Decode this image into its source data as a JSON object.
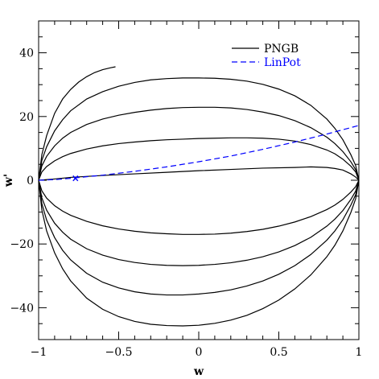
{
  "chart_data": {
    "type": "line",
    "xlabel": "w",
    "ylabel": "w'",
    "xlim": [
      -1,
      1
    ],
    "ylim": [
      -50,
      50
    ],
    "x_ticks": [
      -1,
      -0.5,
      0,
      0.5,
      1
    ],
    "x_tick_labels": [
      "-1",
      "-0.5",
      "0",
      "0.5",
      "1"
    ],
    "y_ticks": [
      -40,
      -20,
      0,
      20,
      40
    ],
    "y_tick_labels": [
      "-40",
      "-20",
      "0",
      "20",
      "40"
    ],
    "legend_position": "top-right",
    "series": [
      {
        "name": "PNGB",
        "style": "solid",
        "color": "#000000",
        "curves": [
          [
            [
              -1,
              0
            ],
            [
              -0.98,
              8
            ],
            [
              -0.95,
              14
            ],
            [
              -0.9,
              21
            ],
            [
              -0.85,
              25.5
            ],
            [
              -0.8,
              28.5
            ],
            [
              -0.75,
              30.8
            ],
            [
              -0.7,
              32.5
            ],
            [
              -0.65,
              33.8
            ],
            [
              -0.6,
              34.7
            ],
            [
              -0.55,
              35.3
            ],
            [
              -0.52,
              35.6
            ]
          ],
          [
            [
              -1,
              0
            ],
            [
              -0.98,
              6.2
            ],
            [
              -0.95,
              10.5
            ],
            [
              -0.9,
              15.5
            ],
            [
              -0.85,
              19
            ],
            [
              -0.8,
              21.8
            ],
            [
              -0.7,
              25.5
            ],
            [
              -0.6,
              27.8
            ],
            [
              -0.5,
              29.5
            ],
            [
              -0.4,
              30.7
            ],
            [
              -0.3,
              31.5
            ],
            [
              -0.2,
              31.9
            ],
            [
              -0.1,
              32.1
            ],
            [
              0,
              32.1
            ],
            [
              0.1,
              32
            ],
            [
              0.2,
              31.7
            ],
            [
              0.3,
              31.1
            ],
            [
              0.4,
              30.1
            ],
            [
              0.5,
              28.6
            ],
            [
              0.6,
              26.5
            ],
            [
              0.7,
              23.5
            ],
            [
              0.8,
              19.2
            ],
            [
              0.85,
              16.3
            ],
            [
              0.9,
              12.7
            ],
            [
              0.95,
              8
            ],
            [
              0.98,
              4.6
            ],
            [
              1,
              0
            ]
          ],
          [
            [
              -1,
              0
            ],
            [
              -0.98,
              4.5
            ],
            [
              -0.95,
              7.5
            ],
            [
              -0.9,
              10.8
            ],
            [
              -0.85,
              13.2
            ],
            [
              -0.8,
              15
            ],
            [
              -0.7,
              17.5
            ],
            [
              -0.6,
              19.2
            ],
            [
              -0.5,
              20.4
            ],
            [
              -0.4,
              21.3
            ],
            [
              -0.3,
              22
            ],
            [
              -0.2,
              22.5
            ],
            [
              -0.1,
              22.8
            ],
            [
              0,
              22.9
            ],
            [
              0.1,
              22.9
            ],
            [
              0.2,
              22.7
            ],
            [
              0.3,
              22.2
            ],
            [
              0.4,
              21.4
            ],
            [
              0.5,
              20.3
            ],
            [
              0.6,
              18.7
            ],
            [
              0.7,
              16.5
            ],
            [
              0.8,
              13.5
            ],
            [
              0.85,
              11.5
            ],
            [
              0.9,
              9
            ],
            [
              0.95,
              5.8
            ],
            [
              0.98,
              3.3
            ],
            [
              1,
              0
            ]
          ],
          [
            [
              -1,
              0
            ],
            [
              -0.98,
              2.6
            ],
            [
              -0.95,
              4.3
            ],
            [
              -0.9,
              6.1
            ],
            [
              -0.85,
              7.4
            ],
            [
              -0.8,
              8.4
            ],
            [
              -0.7,
              9.8
            ],
            [
              -0.6,
              10.8
            ],
            [
              -0.5,
              11.5
            ],
            [
              -0.4,
              12
            ],
            [
              -0.3,
              12.4
            ],
            [
              -0.2,
              12.7
            ],
            [
              -0.1,
              12.9
            ],
            [
              0,
              13.1
            ],
            [
              0.1,
              13.2
            ],
            [
              0.2,
              13.3
            ],
            [
              0.3,
              13.3
            ],
            [
              0.4,
              13.2
            ],
            [
              0.5,
              12.9
            ],
            [
              0.6,
              12.3
            ],
            [
              0.7,
              11.2
            ],
            [
              0.8,
              9.5
            ],
            [
              0.85,
              8.3
            ],
            [
              0.9,
              6.6
            ],
            [
              0.95,
              4.4
            ],
            [
              0.98,
              2.6
            ],
            [
              1,
              0
            ]
          ],
          [
            [
              -1,
              0
            ],
            [
              -0.9,
              0.4
            ],
            [
              -0.8,
              0.9
            ],
            [
              -0.6,
              1.5
            ],
            [
              -0.4,
              2
            ],
            [
              -0.2,
              2.5
            ],
            [
              0,
              3
            ],
            [
              0.2,
              3.4
            ],
            [
              0.4,
              3.8
            ],
            [
              0.6,
              4
            ],
            [
              0.7,
              4.2
            ],
            [
              0.8,
              4
            ],
            [
              0.85,
              3.7
            ],
            [
              0.9,
              3.2
            ],
            [
              0.95,
              2
            ],
            [
              0.98,
              1
            ],
            [
              1,
              0
            ]
          ],
          [
            [
              -1,
              0
            ],
            [
              -0.98,
              -3.3
            ],
            [
              -0.95,
              -5.6
            ],
            [
              -0.9,
              -8
            ],
            [
              -0.85,
              -9.7
            ],
            [
              -0.8,
              -11
            ],
            [
              -0.7,
              -12.9
            ],
            [
              -0.6,
              -14.3
            ],
            [
              -0.5,
              -15.3
            ],
            [
              -0.4,
              -16
            ],
            [
              -0.3,
              -16.5
            ],
            [
              -0.2,
              -16.8
            ],
            [
              -0.1,
              -17
            ],
            [
              0,
              -17
            ],
            [
              0.1,
              -16.9
            ],
            [
              0.2,
              -16.6
            ],
            [
              0.3,
              -16.1
            ],
            [
              0.4,
              -15.4
            ],
            [
              0.5,
              -14.4
            ],
            [
              0.6,
              -13.1
            ],
            [
              0.7,
              -11.4
            ],
            [
              0.8,
              -9.2
            ],
            [
              0.85,
              -7.8
            ],
            [
              0.9,
              -6
            ],
            [
              0.95,
              -3.7
            ],
            [
              0.98,
              -2
            ],
            [
              1,
              0
            ]
          ],
          [
            [
              -1,
              0
            ],
            [
              -0.98,
              -5.5
            ],
            [
              -0.95,
              -9.4
            ],
            [
              -0.9,
              -13.5
            ],
            [
              -0.85,
              -16.3
            ],
            [
              -0.8,
              -18.5
            ],
            [
              -0.7,
              -21.5
            ],
            [
              -0.6,
              -23.5
            ],
            [
              -0.5,
              -24.9
            ],
            [
              -0.4,
              -25.8
            ],
            [
              -0.3,
              -26.4
            ],
            [
              -0.2,
              -26.7
            ],
            [
              -0.1,
              -26.8
            ],
            [
              0,
              -26.7
            ],
            [
              0.1,
              -26.4
            ],
            [
              0.2,
              -25.9
            ],
            [
              0.3,
              -25.1
            ],
            [
              0.4,
              -24
            ],
            [
              0.5,
              -22.5
            ],
            [
              0.6,
              -20.5
            ],
            [
              0.7,
              -17.9
            ],
            [
              0.8,
              -14.4
            ],
            [
              0.85,
              -12.2
            ],
            [
              0.9,
              -9.5
            ],
            [
              0.95,
              -6
            ],
            [
              0.98,
              -3.4
            ],
            [
              1,
              0
            ]
          ],
          [
            [
              -1,
              0
            ],
            [
              -0.98,
              -7.3
            ],
            [
              -0.95,
              -12.5
            ],
            [
              -0.9,
              -18
            ],
            [
              -0.85,
              -22
            ],
            [
              -0.8,
              -25
            ],
            [
              -0.7,
              -29.2
            ],
            [
              -0.6,
              -32
            ],
            [
              -0.5,
              -33.8
            ],
            [
              -0.4,
              -35
            ],
            [
              -0.3,
              -35.7
            ],
            [
              -0.2,
              -36
            ],
            [
              -0.1,
              -36
            ],
            [
              0,
              -35.7
            ],
            [
              0.1,
              -35.2
            ],
            [
              0.2,
              -34.4
            ],
            [
              0.3,
              -33.2
            ],
            [
              0.4,
              -31.6
            ],
            [
              0.5,
              -29.5
            ],
            [
              0.6,
              -26.8
            ],
            [
              0.7,
              -23.3
            ],
            [
              0.8,
              -18.8
            ],
            [
              0.85,
              -15.9
            ],
            [
              0.9,
              -12.4
            ],
            [
              0.95,
              -7.8
            ],
            [
              0.98,
              -4.5
            ],
            [
              1,
              0
            ]
          ],
          [
            [
              -1,
              0
            ],
            [
              -0.98,
              -9.3
            ],
            [
              -0.95,
              -15.9
            ],
            [
              -0.9,
              -22.8
            ],
            [
              -0.85,
              -27.8
            ],
            [
              -0.8,
              -31.6
            ],
            [
              -0.7,
              -37
            ],
            [
              -0.6,
              -40.5
            ],
            [
              -0.5,
              -42.8
            ],
            [
              -0.4,
              -44.3
            ],
            [
              -0.3,
              -45.2
            ],
            [
              -0.2,
              -45.6
            ],
            [
              -0.1,
              -45.7
            ],
            [
              0,
              -45.5
            ],
            [
              0.1,
              -44.9
            ],
            [
              0.2,
              -43.9
            ],
            [
              0.3,
              -42.4
            ],
            [
              0.4,
              -40.3
            ],
            [
              0.5,
              -37.6
            ],
            [
              0.6,
              -34.1
            ],
            [
              0.7,
              -29.7
            ],
            [
              0.8,
              -24
            ],
            [
              0.85,
              -20.4
            ],
            [
              0.9,
              -15.9
            ],
            [
              0.95,
              -10.1
            ],
            [
              0.98,
              -5.8
            ],
            [
              1,
              0
            ]
          ]
        ]
      },
      {
        "name": "LinPot",
        "style": "dashed",
        "color": "#0000ff",
        "curves": [
          [
            [
              -1,
              0
            ],
            [
              -0.9,
              0.2
            ],
            [
              -0.8,
              0.6
            ],
            [
              -0.6,
              1.6
            ],
            [
              -0.4,
              2.8
            ],
            [
              -0.2,
              4.2
            ],
            [
              0,
              5.8
            ],
            [
              0.2,
              7.6
            ],
            [
              0.4,
              9.7
            ],
            [
              0.6,
              12
            ],
            [
              0.8,
              14.5
            ],
            [
              1,
              17.2
            ]
          ]
        ]
      }
    ],
    "markers": [
      {
        "x": -0.77,
        "y": 0.6,
        "symbol": "×",
        "color": "#0000ff"
      }
    ]
  }
}
